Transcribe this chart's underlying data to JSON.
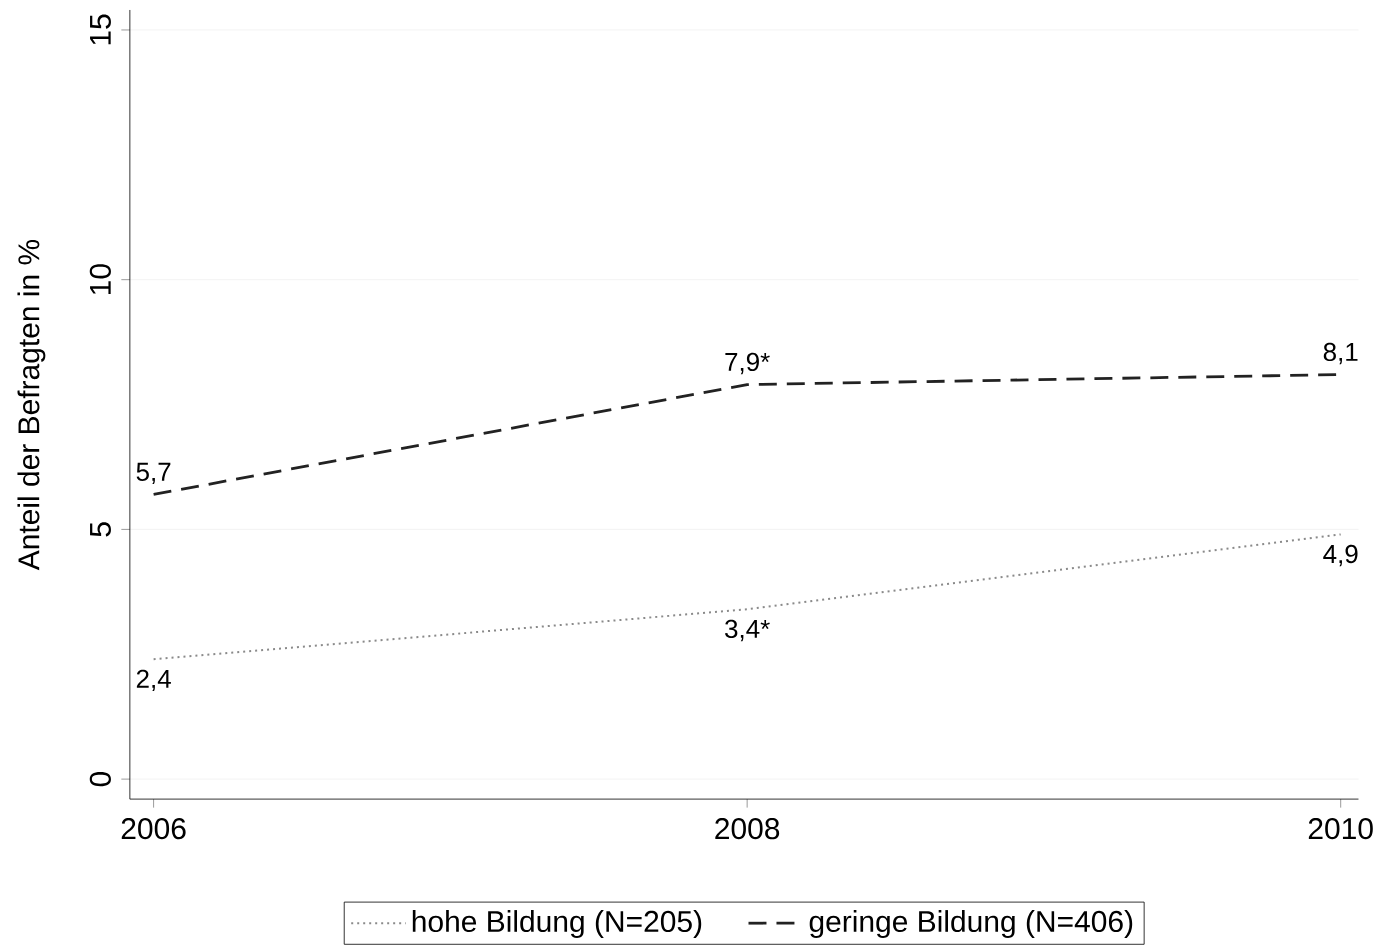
{
  "chart_data": {
    "type": "line",
    "ylabel": "Anteil der Befragten in %",
    "x": [
      2006,
      2008,
      2010
    ],
    "xlim": [
      2005.92,
      2010.06
    ],
    "xticks": [
      2006,
      2008,
      2010
    ],
    "ylim": [
      -0.4,
      15.4
    ],
    "yticks": [
      0,
      5,
      10,
      15
    ],
    "grid": "y",
    "legend": "bottom",
    "marker": "none",
    "series": [
      {
        "name": "hohe Bildung (N=205)",
        "color": "#8a8a8a",
        "line_style": "dotted",
        "values": [
          2.4,
          3.4,
          4.9
        ],
        "value_labels": [
          "2,4",
          "3,4*",
          "4,9"
        ]
      },
      {
        "name": "geringe Bildung (N=406)",
        "color": "#222222",
        "line_style": "dashed",
        "values": [
          5.7,
          7.9,
          8.1
        ],
        "value_labels": [
          "5,7",
          "7,9*",
          "8,1"
        ]
      }
    ]
  }
}
